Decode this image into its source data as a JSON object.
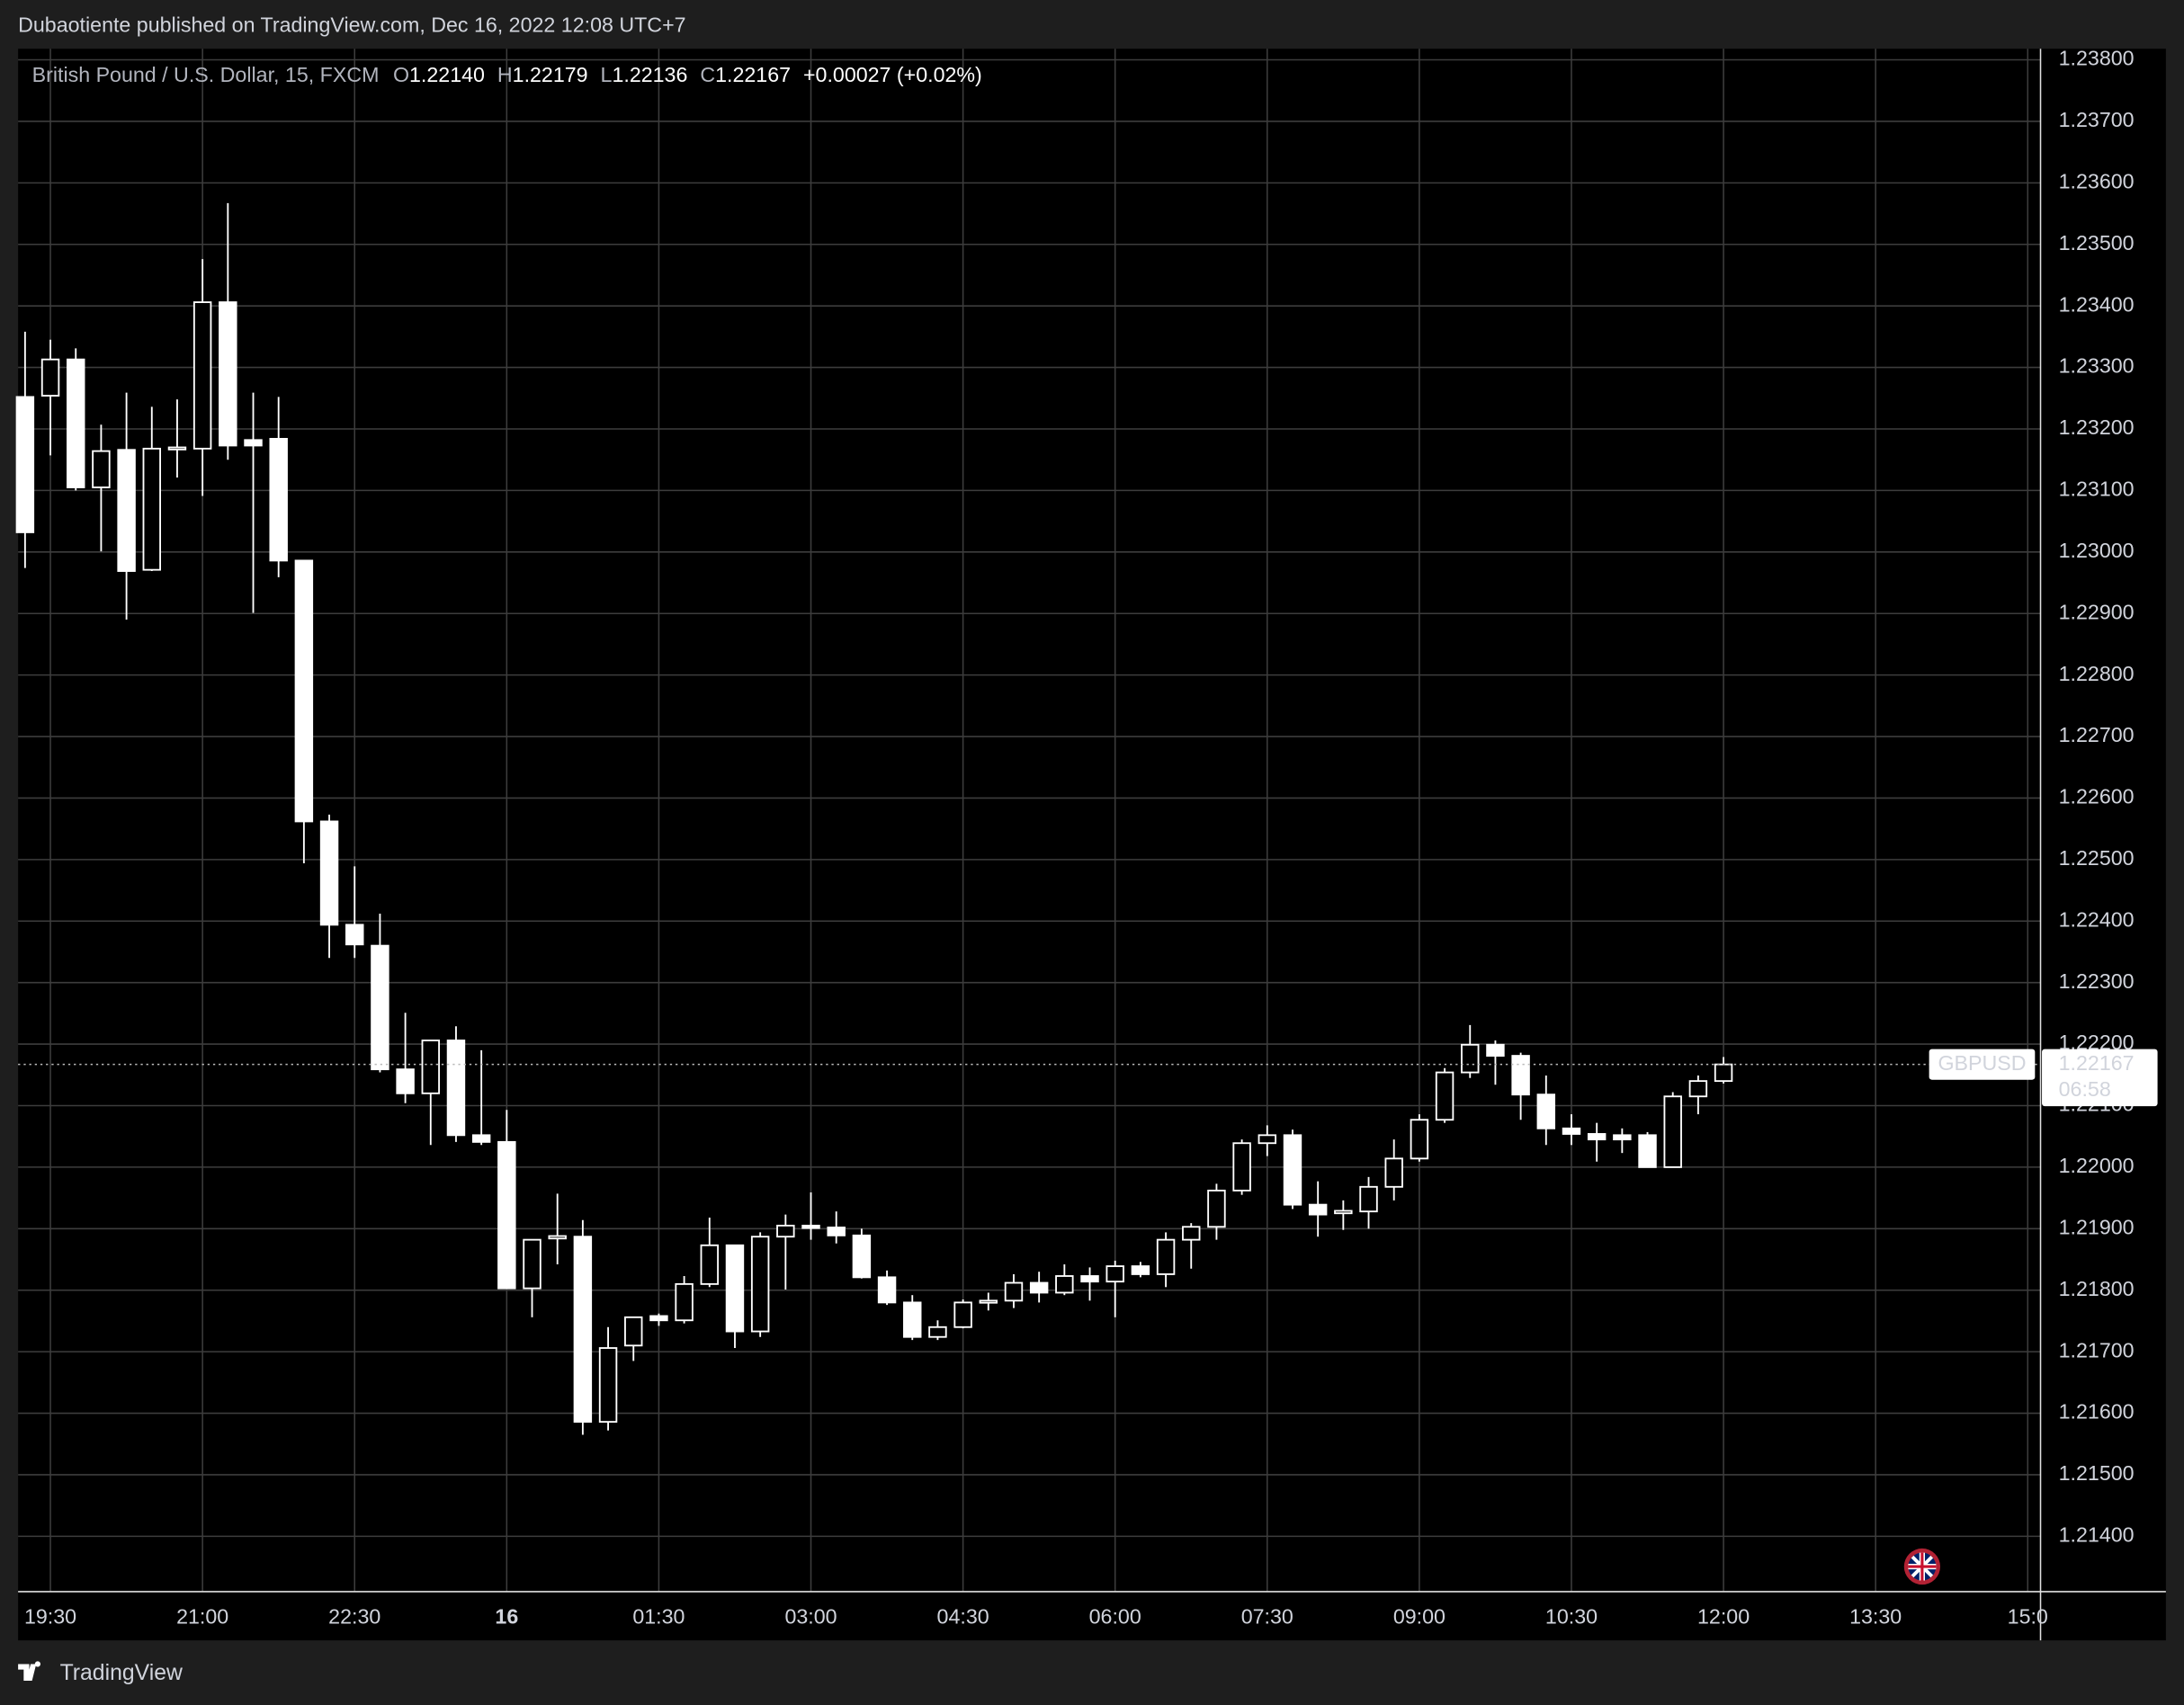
{
  "header": {
    "published": "Dubaotiente published on TradingView.com, Dec 16, 2022 12:08 UTC+7"
  },
  "footer": {
    "brand": "TradingView"
  },
  "chart_data": {
    "type": "candlestick",
    "symbol_title": "British Pound / U.S. Dollar, 15, FXCM",
    "ohlc_legend": [
      {
        "key": "O",
        "value": "1.22140"
      },
      {
        "key": "H",
        "value": "1.22179"
      },
      {
        "key": "L",
        "value": "1.22136"
      },
      {
        "key": "C",
        "value": "1.22167"
      }
    ],
    "change": "+0.00027 (+0.02%)",
    "symbol": "GBPUSD",
    "last_price": 1.22167,
    "countdown": "06:58",
    "categories": [
      null,
      "19:30",
      null,
      null,
      null,
      null,
      null,
      "21:00",
      null,
      null,
      null,
      null,
      null,
      "22:30",
      null,
      null,
      null,
      null,
      null,
      "16",
      null,
      null,
      null,
      null,
      null,
      "01:30",
      null,
      null,
      null,
      null,
      null,
      "03:00",
      null,
      null,
      null,
      null,
      null,
      "04:30",
      null,
      null,
      null,
      null,
      null,
      "06:00",
      null,
      null,
      null,
      null,
      null,
      "07:30",
      null,
      null,
      null,
      null,
      null,
      "09:00",
      null,
      null,
      null,
      null,
      null,
      "10:30",
      null,
      null,
      null,
      null,
      null,
      "12:00",
      null,
      null,
      null,
      null,
      null,
      "13:30",
      null,
      null,
      null,
      null,
      null,
      "15:0"
    ],
    "bold_categories": [
      "16"
    ],
    "open": [
      1.23252,
      1.23254,
      1.23313,
      1.23105,
      1.23166,
      1.22971,
      1.23168,
      1.23168,
      1.23406,
      1.23182,
      1.23184,
      1.22986,
      1.22562,
      1.22394,
      1.2236,
      1.22159,
      1.2212,
      1.22206,
      1.22052,
      1.22041,
      1.21803,
      1.21884,
      1.21887,
      1.21586,
      1.2171,
      1.21758,
      1.21751,
      1.2181,
      1.21873,
      1.21733,
      1.21887,
      1.21905,
      1.21902,
      1.21889,
      1.21821,
      1.2178,
      1.21724,
      1.2174,
      1.2178,
      1.21783,
      1.21812,
      1.21796,
      1.21823,
      1.21814,
      1.21839,
      1.21826,
      1.21882,
      1.21903,
      1.21962,
      1.22039,
      1.22052,
      1.21939,
      1.21925,
      1.21928,
      1.21968,
      1.22014,
      1.22077,
      1.22154,
      1.22199,
      1.22181,
      1.22118,
      1.22063,
      1.22054,
      1.22052,
      1.22052,
      1.22,
      1.22115,
      1.2214,
      null,
      null,
      null,
      null,
      null,
      null,
      null,
      null,
      null,
      null,
      null,
      null
    ],
    "high": [
      1.23358,
      1.23345,
      1.23331,
      1.23207,
      1.23259,
      1.23236,
      1.23248,
      1.23476,
      1.23567,
      1.23259,
      1.23252,
      1.22986,
      1.22573,
      1.22489,
      1.22412,
      1.22251,
      1.22206,
      1.22229,
      1.2219,
      1.22093,
      1.21882,
      1.21957,
      1.21914,
      1.2174,
      1.21756,
      1.21762,
      1.21823,
      1.21918,
      1.21873,
      1.21894,
      1.21923,
      1.21959,
      1.21928,
      1.219,
      1.21832,
      1.21792,
      1.21751,
      1.21785,
      1.21796,
      1.21826,
      1.2183,
      1.21842,
      1.21837,
      1.21848,
      1.21846,
      1.21894,
      1.21909,
      1.21973,
      1.22045,
      1.22068,
      1.22061,
      1.21977,
      1.21946,
      1.21984,
      1.22045,
      1.22086,
      1.22161,
      1.22231,
      1.22206,
      1.22186,
      1.22149,
      1.22086,
      1.22072,
      1.22063,
      1.22057,
      1.22122,
      1.22149,
      1.22179,
      null,
      null,
      null,
      null,
      null,
      null,
      null,
      null,
      null,
      null,
      null,
      null
    ],
    "low": [
      1.22974,
      1.23157,
      1.231,
      1.23001,
      1.2289,
      1.22969,
      1.23121,
      1.23091,
      1.2315,
      1.22901,
      1.22959,
      1.22494,
      1.2234,
      1.2234,
      1.22154,
      1.22104,
      1.22036,
      1.22041,
      1.22036,
      1.21803,
      1.21756,
      1.21842,
      1.21565,
      1.21572,
      1.21685,
      1.21742,
      1.21746,
      1.21805,
      1.21706,
      1.21724,
      1.21801,
      1.21882,
      1.21876,
      1.21819,
      1.21776,
      1.21719,
      1.21719,
      1.21738,
      1.21767,
      1.21771,
      1.2178,
      1.21792,
      1.21783,
      1.21756,
      1.21821,
      1.21805,
      1.21835,
      1.21882,
      1.21955,
      1.22018,
      1.21932,
      1.21887,
      1.21898,
      1.219,
      1.21946,
      1.22009,
      1.22072,
      1.22145,
      1.22134,
      1.22077,
      1.22036,
      1.22036,
      1.22009,
      1.22023,
      1.22,
      1.22,
      1.22086,
      1.22136,
      null,
      null,
      null,
      null,
      null,
      null,
      null,
      null,
      null,
      null,
      null,
      null
    ],
    "close": [
      1.23032,
      1.23313,
      1.23105,
      1.23164,
      1.22969,
      1.23168,
      1.2317,
      1.23406,
      1.23173,
      1.23173,
      1.22986,
      1.22562,
      1.22394,
      1.22362,
      1.22159,
      1.2212,
      1.22206,
      1.22052,
      1.22041,
      1.21803,
      1.21882,
      1.21888,
      1.21586,
      1.21706,
      1.21756,
      1.21751,
      1.2181,
      1.21873,
      1.21733,
      1.21887,
      1.21905,
      1.21901,
      1.21889,
      1.21821,
      1.2178,
      1.21724,
      1.2174,
      1.2178,
      1.21783,
      1.21812,
      1.21796,
      1.21823,
      1.21814,
      1.21839,
      1.21826,
      1.21882,
      1.21903,
      1.21962,
      1.22039,
      1.22052,
      1.21939,
      1.21923,
      1.21929,
      1.21968,
      1.22014,
      1.22077,
      1.22154,
      1.22199,
      1.22181,
      1.22118,
      1.22063,
      1.22054,
      1.22045,
      1.22045,
      1.22,
      1.22115,
      1.2214,
      1.22167,
      null,
      null,
      null,
      null,
      null,
      null,
      null,
      null,
      null,
      null,
      null,
      null
    ],
    "up_color": "#000000",
    "down_color": "#ffffff",
    "wick_color": "#ffffff",
    "ylim": [
      1.2131,
      1.23818
    ],
    "yticks": [
      {
        "value": 1.214,
        "label": "1.21400"
      },
      {
        "value": 1.215,
        "label": "1.21500"
      },
      {
        "value": 1.216,
        "label": "1.21600"
      },
      {
        "value": 1.217,
        "label": "1.21700"
      },
      {
        "value": 1.218,
        "label": "1.21800"
      },
      {
        "value": 1.219,
        "label": "1.21900"
      },
      {
        "value": 1.22,
        "label": "1.22000"
      },
      {
        "value": 1.221,
        "label": "1.22100"
      },
      {
        "value": 1.222,
        "label": "1.22200"
      },
      {
        "value": 1.223,
        "label": "1.22300"
      },
      {
        "value": 1.224,
        "label": "1.22400"
      },
      {
        "value": 1.225,
        "label": "1.22500"
      },
      {
        "value": 1.226,
        "label": "1.22600"
      },
      {
        "value": 1.227,
        "label": "1.22700"
      },
      {
        "value": 1.228,
        "label": "1.22800"
      },
      {
        "value": 1.229,
        "label": "1.22900"
      },
      {
        "value": 1.23,
        "label": "1.23000"
      },
      {
        "value": 1.231,
        "label": "1.23100"
      },
      {
        "value": 1.232,
        "label": "1.23200"
      },
      {
        "value": 1.233,
        "label": "1.23300"
      },
      {
        "value": 1.234,
        "label": "1.23400"
      },
      {
        "value": 1.235,
        "label": "1.23500"
      },
      {
        "value": 1.236,
        "label": "1.23600"
      },
      {
        "value": 1.237,
        "label": "1.23700"
      },
      {
        "value": 1.238,
        "label": "1.23800"
      }
    ],
    "grid": true
  }
}
